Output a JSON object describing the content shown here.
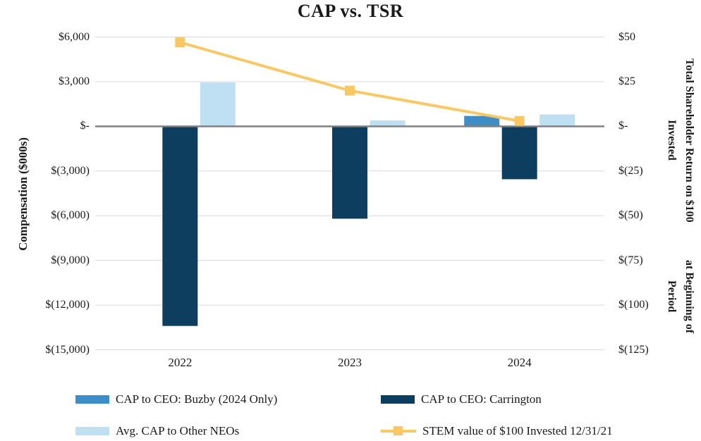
{
  "title": "CAP vs. TSR",
  "chart_data": {
    "type": "bar+line combo",
    "categories": [
      "2022",
      "2023",
      "2024"
    ],
    "series": [
      {
        "name": "CAP to CEO: Buzby (2024 Only)",
        "type": "bar",
        "axis": "left",
        "color": "#3F8DC6",
        "values": [
          null,
          null,
          700
        ]
      },
      {
        "name": "CAP to CEO: Carrington",
        "type": "bar",
        "axis": "left",
        "color": "#0D3E5F",
        "values": [
          -13400,
          -6200,
          -3550
        ]
      },
      {
        "name": "Avg. CAP to Other NEOs",
        "type": "bar",
        "axis": "left",
        "color": "#BFE0F2",
        "values": [
          2950,
          400,
          800
        ]
      },
      {
        "name": "STEM value of $100 Invested 12/31/21",
        "type": "line",
        "axis": "right",
        "color": "#FAC863",
        "values": [
          47,
          20,
          3
        ]
      }
    ],
    "left_axis": {
      "title": "Compensation ($000s)",
      "min": -15000,
      "max": 6000,
      "ticks": [
        6000,
        3000,
        0,
        -3000,
        -6000,
        -9000,
        -12000,
        -15000
      ],
      "tick_labels": [
        "$6,000",
        "$3,000",
        "$-",
        "$(3,000)",
        "$(6,000)",
        "$(9,000)",
        "$(12,000)",
        "$(15,000)"
      ]
    },
    "right_axis": {
      "title_lines": [
        "Total Shareholder Return on $100 Invested",
        "at Beginning of Period"
      ],
      "min": -125,
      "max": 50,
      "ticks": [
        50,
        25,
        0,
        -25,
        -50,
        -75,
        -100,
        -125
      ],
      "tick_labels": [
        "$50",
        "$25",
        "$-",
        "$(25)",
        "$(50)",
        "$(75)",
        "$(100)",
        "$(125)"
      ]
    },
    "grid": true,
    "legend_position": "bottom",
    "colors": {
      "gridline": "#D9D9D9",
      "zero_line": "#808080",
      "text": "#1A1A1A",
      "background": "#FFFFFF"
    }
  }
}
